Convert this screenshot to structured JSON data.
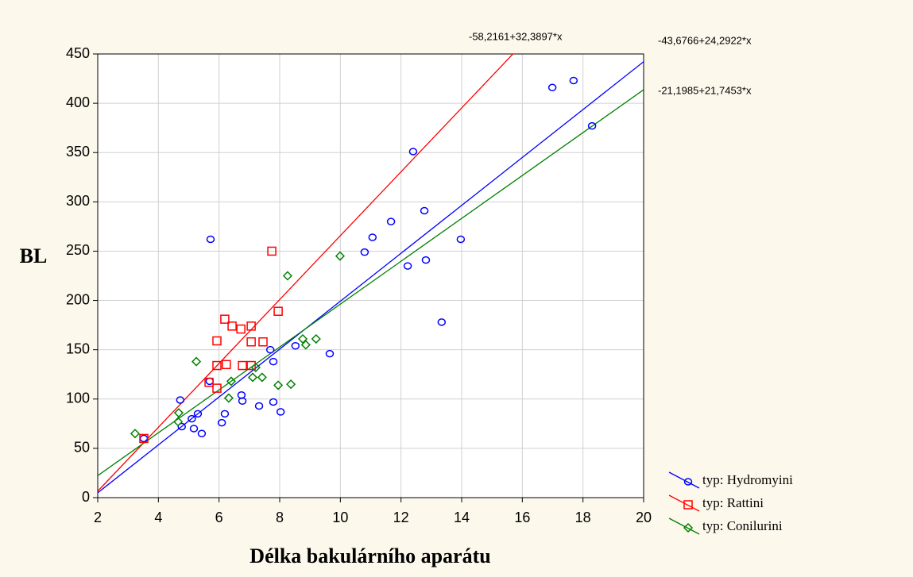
{
  "chart_data": {
    "type": "scatter",
    "x_label": "Délka bakulárního aparátu",
    "y_label": "BL",
    "xlim": [
      2,
      20
    ],
    "xticks": [
      2,
      4,
      6,
      8,
      10,
      12,
      14,
      16,
      18,
      20
    ],
    "ylim": [
      0,
      450
    ],
    "yticks": [
      0,
      50,
      100,
      150,
      200,
      250,
      300,
      350,
      400,
      450
    ],
    "grid": true,
    "legend": "lower right",
    "series": [
      {
        "name": "typ: Hydromyini",
        "color": "#0000ff",
        "marker": "circle",
        "equation": "-43,6766+24,2922*x",
        "intercept": -43.6766,
        "slope": 24.2922,
        "x": [
          3.52,
          4.72,
          4.77,
          5.1,
          5.17,
          5.3,
          5.43,
          5.69,
          5.72,
          6.09,
          6.19,
          6.74,
          6.77,
          7.32,
          7.69,
          7.79,
          7.79,
          8.03,
          8.52,
          9.65,
          10.8,
          11.06,
          11.67,
          12.22,
          12.4,
          12.77,
          12.82,
          13.34,
          13.97,
          16.99,
          17.69,
          18.3
        ],
        "values": [
          60,
          99,
          72,
          80,
          70,
          85,
          65,
          118,
          262,
          76,
          85,
          104,
          98,
          93,
          150,
          138,
          97,
          87,
          154,
          146,
          249,
          264,
          280,
          235,
          351,
          291,
          241,
          178,
          262,
          416,
          423,
          377
        ]
      },
      {
        "name": "typ: Rattini",
        "color": "#ff0000",
        "marker": "square",
        "equation": "-58,2161+32,3897*x",
        "intercept": -58.2161,
        "slope": 32.3897,
        "x": [
          3.52,
          5.67,
          5.93,
          5.93,
          5.93,
          6.19,
          6.24,
          6.43,
          6.72,
          6.77,
          7.06,
          7.06,
          7.06,
          7.45,
          7.74,
          7.95
        ],
        "values": [
          60,
          117,
          111,
          159,
          134,
          181,
          135,
          174,
          171,
          134,
          174,
          158,
          134,
          158,
          250,
          189
        ]
      },
      {
        "name": "typ: Conilurini",
        "color": "#008000",
        "marker": "diamond",
        "equation": "-21,1985+21,7453*x",
        "intercept": -21.1985,
        "slope": 21.7453,
        "x": [
          3.23,
          4.67,
          4.65,
          5.25,
          6.32,
          6.4,
          7.11,
          7.21,
          7.42,
          7.95,
          8.26,
          8.37,
          8.76,
          8.86,
          9.2,
          9.99
        ],
        "values": [
          65,
          86,
          77,
          138,
          101,
          118,
          122,
          132,
          122,
          114,
          225,
          115,
          161,
          155,
          161,
          245
        ]
      }
    ]
  }
}
